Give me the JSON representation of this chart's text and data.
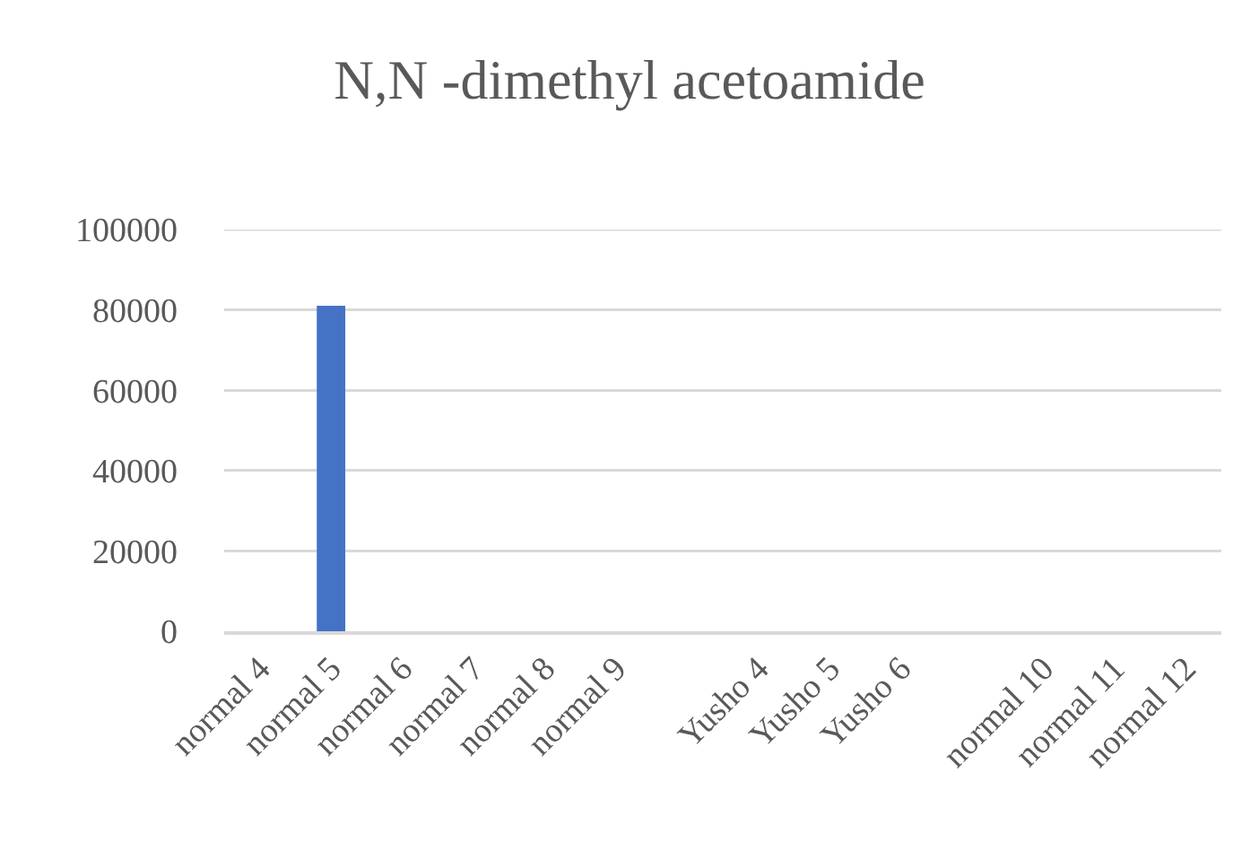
{
  "chart_data": {
    "type": "bar",
    "title": "N,N -dimethyl acetoamide",
    "categories": [
      "normal 4",
      "normal 5",
      "normal 6",
      "normal 7",
      "normal 8",
      "normal 9",
      null,
      "Yusho 4",
      "Yusho 5",
      "Yusho 6",
      null,
      "normal 10",
      "normal 11",
      "normal 12"
    ],
    "values": [
      0,
      81000,
      0,
      0,
      0,
      0,
      null,
      0,
      0,
      0,
      null,
      0,
      0,
      0
    ],
    "color": "#4472c4",
    "ylim": [
      0,
      100000
    ],
    "yticks": [
      0,
      20000,
      40000,
      60000,
      80000,
      100000
    ],
    "grid": "y"
  }
}
